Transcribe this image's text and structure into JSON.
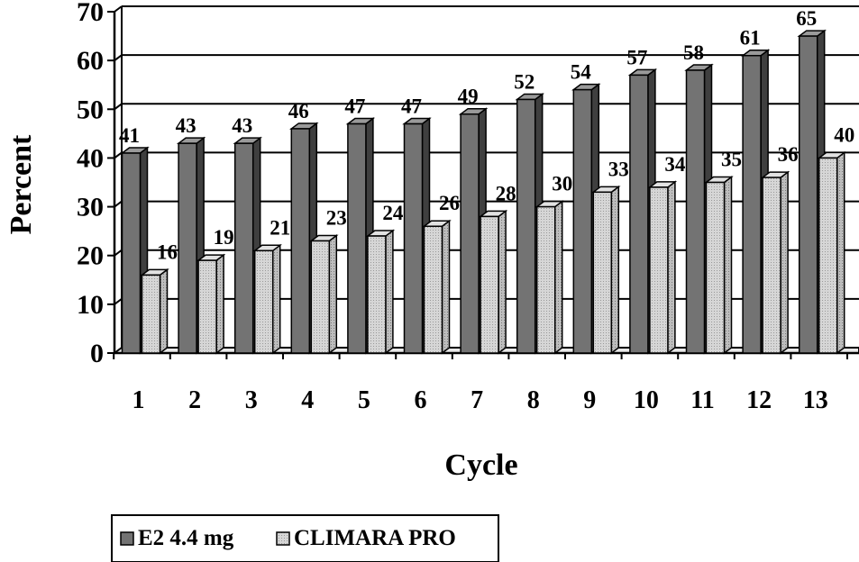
{
  "chart_data": {
    "type": "bar",
    "title": "",
    "xlabel": "Cycle",
    "ylabel": "Percent",
    "ylim": [
      0,
      70
    ],
    "yticks": [
      0,
      10,
      20,
      30,
      40,
      50,
      60,
      70
    ],
    "grid": true,
    "legend_position": "bottom-left",
    "categories": [
      "1",
      "2",
      "3",
      "4",
      "5",
      "6",
      "7",
      "8",
      "9",
      "10",
      "11",
      "12",
      "13"
    ],
    "series": [
      {
        "name": "E2 4.4 mg",
        "color": "#737373",
        "values": [
          41,
          43,
          43,
          46,
          47,
          47,
          49,
          52,
          54,
          57,
          58,
          61,
          65
        ]
      },
      {
        "name": "CLIMARA PRO",
        "color": "#cfcfcf",
        "values": [
          16,
          19,
          21,
          23,
          24,
          26,
          28,
          30,
          33,
          34,
          35,
          36,
          40
        ]
      }
    ]
  }
}
